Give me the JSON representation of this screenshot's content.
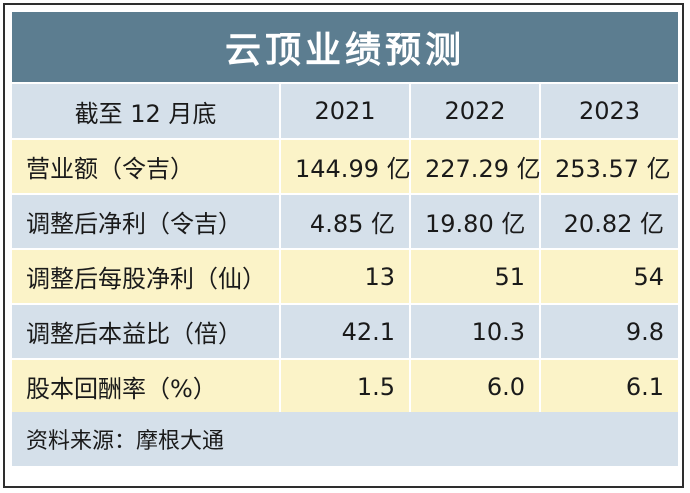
{
  "title": "云顶业绩预测",
  "table": {
    "header": [
      "截至 12 月底",
      "2021",
      "2022",
      "2023"
    ],
    "rows": [
      {
        "label": "营业额（令吉）",
        "values": [
          "144.99 亿",
          "227.29 亿",
          "253.57 亿"
        ]
      },
      {
        "label": "调整后净利（令吉）",
        "values": [
          "4.85 亿",
          "19.80 亿",
          "20.82 亿"
        ]
      },
      {
        "label": "调整后每股净利（仙）",
        "values": [
          "13",
          "51",
          "54"
        ]
      },
      {
        "label": "调整后本益比（倍）",
        "values": [
          "42.1",
          "10.3",
          "9.8"
        ]
      },
      {
        "label": "股本回酬率（%）",
        "values": [
          "1.5",
          "6.0",
          "6.1"
        ]
      }
    ]
  },
  "source": "资料来源：摩根大通",
  "colors": {
    "title_bg": "#5c7d90",
    "header_bg": "#d5e0ea",
    "row_yellow": "#fbf3c8",
    "row_blue": "#d5e0ea"
  }
}
